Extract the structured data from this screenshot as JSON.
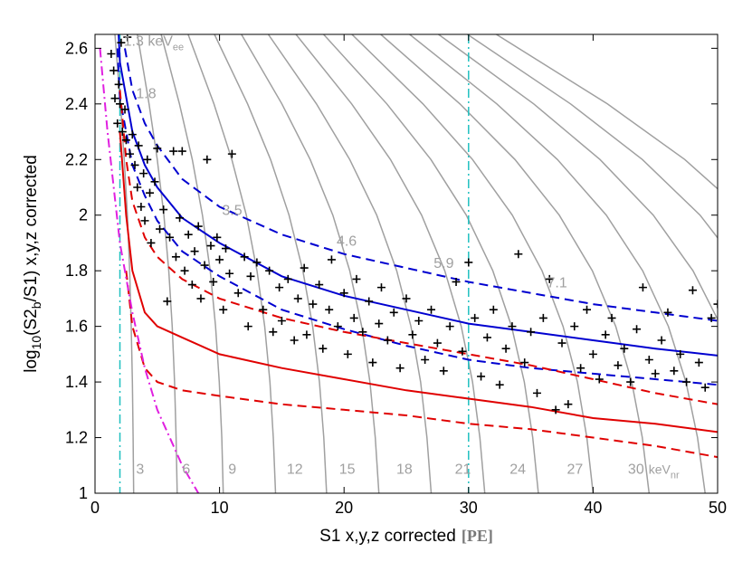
{
  "chart_data": {
    "type": "scatter",
    "xlabel": "S1 x,y,z corrected",
    "xlabel_unit": "[PE]",
    "ylabel": [
      "log",
      "10",
      "(S2",
      "b",
      "/S1) x,y,z corrected"
    ],
    "ylabel_sub": [
      false,
      true,
      false,
      true,
      false
    ],
    "xlim": [
      0,
      50
    ],
    "ylim": [
      1,
      2.65
    ],
    "xticks": [
      0,
      10,
      20,
      30,
      40,
      50
    ],
    "yticks": [
      1,
      1.2,
      1.4,
      1.6,
      1.8,
      2,
      2.2,
      2.4,
      2.6
    ],
    "marker_color": "#000000",
    "x": [
      1.3,
      1.5,
      1.6,
      1.8,
      1.9,
      2.0,
      2.1,
      2.2,
      2.4,
      2.5,
      2.6,
      2.8,
      3.0,
      3.2,
      3.4,
      3.5,
      3.7,
      3.9,
      4.0,
      4.2,
      4.4,
      4.5,
      4.8,
      5.0,
      5.2,
      5.5,
      5.8,
      6.0,
      6.3,
      6.5,
      6.8,
      7.0,
      7.2,
      7.5,
      7.8,
      8.0,
      8.3,
      8.5,
      8.8,
      9.0,
      9.3,
      9.5,
      9.8,
      10.0,
      10.3,
      10.5,
      10.8,
      11.0,
      11.5,
      12.0,
      12.3,
      12.5,
      13.0,
      13.5,
      14.0,
      14.3,
      14.8,
      15.0,
      15.5,
      16.0,
      16.3,
      16.8,
      17.0,
      17.5,
      18.0,
      18.3,
      18.8,
      19.0,
      19.5,
      20.0,
      20.3,
      20.8,
      21.0,
      21.5,
      22.0,
      22.3,
      22.8,
      23.0,
      23.5,
      24.0,
      24.5,
      25.0,
      25.5,
      26.0,
      26.5,
      27.0,
      27.5,
      28.0,
      28.5,
      29.0,
      29.5,
      30.0,
      30.5,
      31.0,
      31.5,
      32.0,
      32.5,
      33.0,
      33.5,
      34.0,
      34.5,
      35.0,
      35.5,
      36.0,
      36.5,
      37.0,
      37.5,
      38.0,
      38.5,
      39.0,
      39.5,
      40.0,
      40.5,
      41.0,
      41.5,
      42.0,
      42.5,
      43.0,
      43.5,
      44.0,
      44.5,
      45.0,
      45.5,
      46.0,
      46.5,
      47.0,
      47.5,
      48.0,
      48.5,
      49.0,
      49.5,
      50.0
    ],
    "values": [
      2.58,
      2.52,
      2.42,
      2.33,
      2.47,
      2.4,
      2.62,
      2.3,
      2.38,
      2.27,
      2.64,
      2.22,
      2.29,
      2.18,
      2.1,
      2.25,
      2.03,
      2.15,
      1.98,
      2.2,
      2.08,
      1.9,
      2.12,
      2.24,
      1.95,
      2.02,
      1.69,
      1.92,
      2.23,
      1.85,
      1.99,
      2.23,
      1.8,
      1.93,
      1.75,
      1.87,
      1.96,
      1.7,
      1.82,
      2.2,
      1.89,
      1.76,
      1.92,
      1.84,
      1.66,
      1.88,
      1.79,
      2.22,
      1.72,
      1.85,
      1.6,
      1.78,
      1.83,
      1.66,
      1.8,
      1.58,
      1.74,
      1.62,
      1.77,
      1.55,
      1.7,
      1.81,
      1.57,
      1.68,
      1.75,
      1.52,
      1.66,
      1.84,
      1.6,
      1.72,
      1.5,
      1.63,
      1.77,
      1.58,
      1.69,
      1.47,
      1.61,
      1.74,
      1.55,
      1.65,
      1.45,
      1.7,
      1.57,
      1.62,
      1.48,
      1.66,
      1.54,
      1.44,
      1.6,
      1.76,
      1.51,
      1.83,
      1.63,
      1.42,
      1.56,
      1.66,
      1.39,
      1.52,
      1.6,
      1.86,
      1.47,
      1.58,
      1.36,
      1.63,
      1.77,
      1.3,
      1.54,
      1.32,
      1.6,
      1.45,
      1.66,
      1.5,
      1.41,
      1.57,
      1.63,
      1.46,
      1.52,
      1.4,
      1.59,
      1.74,
      1.48,
      1.43,
      1.55,
      1.65,
      1.44,
      1.5,
      1.4,
      1.73,
      1.47,
      1.38,
      1.63,
      1.68
    ],
    "contour_color": "#a0a0a0",
    "contours": [
      {
        "x": [
          1.6,
          2.04,
          2.35,
          2.6,
          2.78,
          2.91,
          3.0,
          3.06,
          3.1
        ],
        "y": [
          2.65,
          2.4,
          2.2,
          2.0,
          1.8,
          1.6,
          1.4,
          1.2,
          1.0
        ]
      },
      {
        "x": [
          3.4,
          4.34,
          5.0,
          5.53,
          5.92,
          6.2,
          6.39,
          6.51,
          6.6
        ],
        "y": [
          2.65,
          2.4,
          2.2,
          2.0,
          1.8,
          1.6,
          1.4,
          1.2,
          1.0
        ]
      },
      {
        "x": [
          5.31,
          6.78,
          7.81,
          8.63,
          9.25,
          9.68,
          9.98,
          10.18,
          10.3
        ],
        "y": [
          2.65,
          2.4,
          2.2,
          2.0,
          1.8,
          1.6,
          1.4,
          1.2,
          1.0
        ]
      },
      {
        "x": [
          7.48,
          9.55,
          10.99,
          12.15,
          13.01,
          13.63,
          14.05,
          14.32,
          14.5
        ],
        "y": [
          2.65,
          2.4,
          2.2,
          2.0,
          1.8,
          1.6,
          1.4,
          1.2,
          1.0
        ]
      },
      {
        "x": [
          9.59,
          12.25,
          14.1,
          15.58,
          16.69,
          17.48,
          18.02,
          18.37,
          18.6
        ],
        "y": [
          2.65,
          2.4,
          2.2,
          2.0,
          1.8,
          1.6,
          1.4,
          1.2,
          1.0
        ]
      },
      {
        "x": [
          11.76,
          15.01,
          17.28,
          19.1,
          20.46,
          21.42,
          22.08,
          22.51,
          22.8
        ],
        "y": [
          2.65,
          2.4,
          2.2,
          2.0,
          1.8,
          1.6,
          1.4,
          1.2,
          1.0
        ]
      },
      {
        "x": [
          13.92,
          17.78,
          20.46,
          22.62,
          24.23,
          25.37,
          26.15,
          26.66,
          27.0
        ],
        "y": [
          2.65,
          2.4,
          2.2,
          2.0,
          1.8,
          1.6,
          1.4,
          1.2,
          1.0
        ]
      },
      {
        "x": [
          16.14,
          20.61,
          23.73,
          26.23,
          28.09,
          29.41,
          30.32,
          30.91,
          31.3
        ],
        "y": [
          2.65,
          2.4,
          2.2,
          2.0,
          1.8,
          1.6,
          1.4,
          1.2,
          1.0
        ]
      },
      {
        "x": [
          18.36,
          23.44,
          26.98,
          29.82,
          31.95,
          33.45,
          34.48,
          35.15,
          35.6
        ],
        "y": [
          2.65,
          2.4,
          2.2,
          2.0,
          1.8,
          1.6,
          1.4,
          1.2,
          1.0
        ]
      },
      {
        "x": [
          20.63,
          26.34,
          30.32,
          33.51,
          35.9,
          37.59,
          38.74,
          39.5,
          40.0
        ],
        "y": [
          2.65,
          2.4,
          2.2,
          2.0,
          1.8,
          1.6,
          1.4,
          1.2,
          1.0
        ]
      },
      {
        "x": [
          22.95,
          29.3,
          33.73,
          37.28,
          39.94,
          41.82,
          43.1,
          43.95,
          44.5
        ],
        "y": [
          2.65,
          2.4,
          2.2,
          2.0,
          1.8,
          1.6,
          1.4,
          1.2,
          1.0
        ]
      },
      {
        "x": [
          25.27,
          32.27,
          37.14,
          41.06,
          43.98,
          46.05,
          47.46,
          48.39,
          49.0
        ],
        "y": [
          2.65,
          2.4,
          2.2,
          2.0,
          1.8,
          1.6,
          1.4,
          1.2,
          1.0
        ]
      },
      {
        "x": [
          27.59,
          35.23,
          40.56,
          44.83,
          48.02,
          50.28,
          51.82,
          52.84,
          53.5
        ],
        "y": [
          2.65,
          2.4,
          2.2,
          2.0,
          1.8,
          1.6,
          1.4,
          1.2,
          1.0
        ]
      },
      {
        "x": [
          29.91,
          38.19,
          43.96,
          48.59,
          52.05,
          54.5,
          56.17,
          57.27,
          58.0
        ],
        "y": [
          2.65,
          2.4,
          2.2,
          2.0,
          1.8,
          1.6,
          1.4,
          1.2,
          1.0
        ]
      },
      {
        "x": [
          32.23,
          41.15,
          47.37,
          52.36,
          56.09,
          58.73,
          60.53,
          61.72,
          62.5
        ],
        "y": [
          2.65,
          2.4,
          2.2,
          2.0,
          1.8,
          1.6,
          1.4,
          1.2,
          1.0
        ]
      }
    ],
    "curves": [
      {
        "color": "#0000d0",
        "dash": "solid",
        "x": [
          1.9,
          2,
          3,
          4,
          5,
          7,
          10,
          15,
          20,
          25,
          30,
          35,
          40,
          45,
          50
        ],
        "y": [
          2.65,
          2.55,
          2.3,
          2.18,
          2.1,
          1.99,
          1.9,
          1.78,
          1.71,
          1.66,
          1.61,
          1.58,
          1.55,
          1.52,
          1.495
        ]
      },
      {
        "color": "#0000d0",
        "dash": "dashed",
        "x": [
          2.4,
          3,
          4,
          5,
          7,
          10,
          15,
          20,
          25,
          30,
          35,
          40,
          45,
          50
        ],
        "y": [
          2.6,
          2.45,
          2.33,
          2.25,
          2.13,
          2.03,
          1.93,
          1.86,
          1.81,
          1.76,
          1.72,
          1.68,
          1.65,
          1.62
        ]
      },
      {
        "color": "#0000d0",
        "dash": "dashed",
        "x": [
          1.8,
          2,
          3,
          4,
          5,
          7,
          10,
          15,
          20,
          25,
          30,
          35,
          40,
          45,
          50
        ],
        "y": [
          2.6,
          2.42,
          2.18,
          2.07,
          1.98,
          1.87,
          1.78,
          1.66,
          1.59,
          1.53,
          1.48,
          1.45,
          1.43,
          1.41,
          1.39
        ]
      },
      {
        "color": "#e00000",
        "dash": "solid",
        "x": [
          2,
          2.5,
          3,
          4,
          5,
          7,
          10,
          15,
          20,
          25,
          30,
          35,
          40,
          45,
          50
        ],
        "y": [
          2.3,
          2.0,
          1.8,
          1.65,
          1.6,
          1.56,
          1.5,
          1.45,
          1.41,
          1.37,
          1.34,
          1.31,
          1.27,
          1.25,
          1.22
        ]
      },
      {
        "color": "#e00000",
        "dash": "dashed",
        "x": [
          2,
          2.5,
          3,
          4,
          5,
          7,
          10,
          15,
          20,
          25,
          30,
          35,
          40,
          45,
          50
        ],
        "y": [
          2.45,
          2.2,
          2.05,
          1.92,
          1.85,
          1.77,
          1.7,
          1.63,
          1.58,
          1.54,
          1.5,
          1.46,
          1.41,
          1.36,
          1.32
        ]
      },
      {
        "color": "#e00000",
        "dash": "dashed",
        "x": [
          2.5,
          3,
          4,
          5,
          7,
          10,
          15,
          20,
          25,
          30,
          35,
          40,
          45,
          50
        ],
        "y": [
          1.8,
          1.6,
          1.45,
          1.4,
          1.37,
          1.35,
          1.32,
          1.3,
          1.28,
          1.25,
          1.23,
          1.2,
          1.17,
          1.13
        ]
      },
      {
        "color": "#e020e0",
        "dash": "dashdot",
        "x": [
          0.4,
          1,
          2,
          3,
          4,
          5,
          6,
          7,
          8.3
        ],
        "y": [
          2.6,
          2.3,
          1.9,
          1.65,
          1.45,
          1.3,
          1.2,
          1.1,
          1.0
        ]
      }
    ],
    "vlines": [
      {
        "x": 2,
        "color": "#20c0c0"
      },
      {
        "x": 30,
        "color": "#20c0c0"
      }
    ],
    "annotations": [
      {
        "text": "1.3 keV",
        "sub": "ee",
        "x": 2.3,
        "y": 2.61
      },
      {
        "text": "1.8",
        "x": 3.3,
        "y": 2.42
      },
      {
        "text": "3.5",
        "x": 10.2,
        "y": 2.0
      },
      {
        "text": "4.6",
        "x": 19.4,
        "y": 1.89
      },
      {
        "text": "5.9",
        "x": 27.2,
        "y": 1.81
      },
      {
        "text": "7.1",
        "x": 36.3,
        "y": 1.74
      },
      {
        "text": "3",
        "x": 3.3,
        "y": 1.07
      },
      {
        "text": "6",
        "x": 7.0,
        "y": 1.07
      },
      {
        "text": "9",
        "x": 10.7,
        "y": 1.07
      },
      {
        "text": "12",
        "x": 15.4,
        "y": 1.07
      },
      {
        "text": "15",
        "x": 19.6,
        "y": 1.07
      },
      {
        "text": "18",
        "x": 24.2,
        "y": 1.07
      },
      {
        "text": "21",
        "x": 28.9,
        "y": 1.07
      },
      {
        "text": "24",
        "x": 33.3,
        "y": 1.07
      },
      {
        "text": "27",
        "x": 37.9,
        "y": 1.07
      },
      {
        "text": "30",
        "sub": "keV",
        "sub2": "nr",
        "x": 42.8,
        "y": 1.07
      }
    ]
  }
}
